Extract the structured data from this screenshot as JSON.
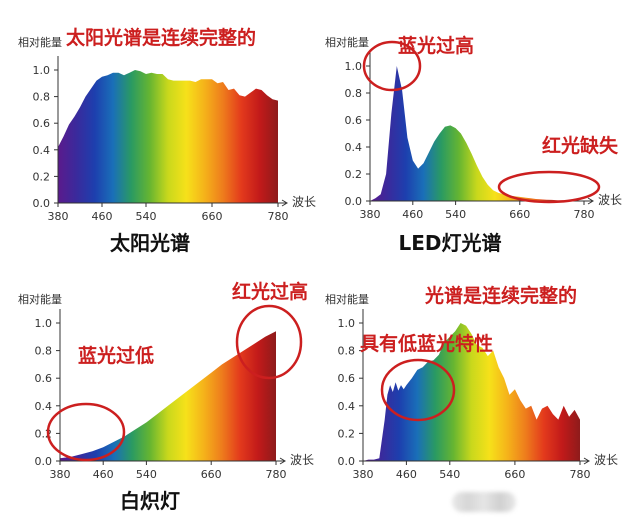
{
  "colors": {
    "annotation": "#cc1f1f",
    "axis": "#333333",
    "tick_text": "#333333",
    "caption": "#111111",
    "spectrum": [
      "#5b1a8c",
      "#3a2a9c",
      "#1d3fae",
      "#1a6fb8",
      "#2a9a62",
      "#66b531",
      "#c9d81c",
      "#f6e11a",
      "#f5b21a",
      "#ee7c1c",
      "#e33a1c",
      "#c21a1a",
      "#8e1b1b"
    ]
  },
  "chart_data": [
    {
      "id": "sunlight",
      "type": "area",
      "caption": "太阳光谱",
      "title": "太阳光谱是连续完整的",
      "ylabel": "相对能量",
      "xlabel": "波长",
      "xlim": [
        380,
        780
      ],
      "ylim": [
        0,
        1.0
      ],
      "xticks": [
        "380",
        "460",
        "540",
        "660",
        "780"
      ],
      "yticks": [
        "0.0",
        "0.2",
        "0.4",
        "0.6",
        "0.8",
        "1.0"
      ],
      "x": [
        380,
        390,
        400,
        410,
        420,
        430,
        440,
        450,
        460,
        470,
        480,
        490,
        500,
        510,
        520,
        530,
        540,
        550,
        560,
        570,
        580,
        590,
        600,
        610,
        620,
        630,
        640,
        650,
        660,
        670,
        680,
        690,
        700,
        710,
        720,
        730,
        740,
        750,
        760,
        770,
        780
      ],
      "y": [
        0.42,
        0.5,
        0.59,
        0.65,
        0.72,
        0.8,
        0.86,
        0.92,
        0.95,
        0.96,
        0.98,
        0.98,
        0.96,
        0.98,
        1.0,
        0.99,
        0.97,
        0.98,
        0.97,
        0.97,
        0.93,
        0.92,
        0.92,
        0.92,
        0.92,
        0.91,
        0.93,
        0.93,
        0.93,
        0.9,
        0.91,
        0.85,
        0.86,
        0.81,
        0.8,
        0.83,
        0.86,
        0.85,
        0.81,
        0.78,
        0.77
      ],
      "annotations": []
    },
    {
      "id": "led",
      "type": "area",
      "caption": "LED灯光谱",
      "title": "",
      "ylabel": "相对能量",
      "xlabel": "波长",
      "xlim": [
        380,
        780
      ],
      "ylim": [
        0,
        1.0
      ],
      "xticks": [
        "380",
        "460",
        "540",
        "660",
        "780"
      ],
      "yticks": [
        "0.0",
        "0.2",
        "0.4",
        "0.6",
        "0.8",
        "1.0"
      ],
      "x": [
        380,
        390,
        400,
        410,
        420,
        430,
        440,
        450,
        460,
        470,
        480,
        490,
        500,
        510,
        520,
        530,
        540,
        550,
        560,
        570,
        580,
        590,
        600,
        610,
        620,
        630,
        640,
        650,
        660,
        670,
        680,
        690,
        700,
        710,
        720,
        730,
        740,
        750,
        760,
        770,
        780
      ],
      "y": [
        0.0,
        0.02,
        0.05,
        0.2,
        0.65,
        1.0,
        0.82,
        0.47,
        0.3,
        0.24,
        0.28,
        0.36,
        0.44,
        0.5,
        0.55,
        0.56,
        0.54,
        0.5,
        0.43,
        0.35,
        0.26,
        0.18,
        0.12,
        0.08,
        0.06,
        0.05,
        0.04,
        0.035,
        0.03,
        0.025,
        0.02,
        0.015,
        0.012,
        0.01,
        0.008,
        0.006,
        0.005,
        0.004,
        0.003,
        0.002,
        0.0
      ],
      "annotations": [
        {
          "text": "蓝光过高",
          "ellipse_center": [
            424,
            0.95
          ]
        },
        {
          "text": "红光缺失",
          "ellipse_center": [
            700,
            0.08
          ]
        }
      ]
    },
    {
      "id": "incandescent",
      "type": "area",
      "caption": "白炽灯",
      "title": "",
      "ylabel": "相对能量",
      "xlabel": "波长",
      "xlim": [
        380,
        780
      ],
      "ylim": [
        0,
        1.0
      ],
      "xticks": [
        "380",
        "460",
        "540",
        "660",
        "780"
      ],
      "yticks": [
        "0.0",
        "0.2",
        "0.4",
        "0.6",
        "0.8",
        "1.0"
      ],
      "x": [
        380,
        400,
        420,
        440,
        460,
        480,
        500,
        520,
        540,
        560,
        580,
        600,
        620,
        640,
        660,
        680,
        700,
        720,
        740,
        760,
        780
      ],
      "y": [
        0.02,
        0.03,
        0.05,
        0.07,
        0.1,
        0.14,
        0.18,
        0.23,
        0.28,
        0.34,
        0.4,
        0.46,
        0.52,
        0.58,
        0.64,
        0.7,
        0.75,
        0.8,
        0.85,
        0.9,
        0.94
      ],
      "annotations": [
        {
          "text": "蓝光过低",
          "ellipse_center": [
            410,
            0.04
          ]
        },
        {
          "text": "红光过高",
          "ellipse_center": [
            760,
            0.86
          ]
        }
      ]
    },
    {
      "id": "full-spectrum",
      "type": "area",
      "caption": "",
      "title": "光谱是连续完整的",
      "ylabel": "相对能量",
      "xlabel": "波长",
      "xlim": [
        380,
        780
      ],
      "ylim": [
        0,
        1.0
      ],
      "xticks": [
        "380",
        "460",
        "540",
        "660",
        "780"
      ],
      "yticks": [
        "0.0",
        "0.2",
        "0.4",
        "0.6",
        "0.8",
        "1.0"
      ],
      "x": [
        380,
        390,
        400,
        410,
        420,
        425,
        430,
        435,
        440,
        445,
        450,
        455,
        460,
        470,
        480,
        490,
        500,
        510,
        520,
        530,
        540,
        550,
        560,
        570,
        580,
        590,
        600,
        610,
        620,
        630,
        640,
        650,
        660,
        670,
        680,
        690,
        700,
        710,
        720,
        730,
        740,
        750,
        760,
        770,
        780
      ],
      "y": [
        0.0,
        0.01,
        0.01,
        0.02,
        0.3,
        0.48,
        0.55,
        0.5,
        0.57,
        0.51,
        0.55,
        0.52,
        0.55,
        0.6,
        0.66,
        0.68,
        0.72,
        0.73,
        0.77,
        0.86,
        0.9,
        0.94,
        1.0,
        0.98,
        0.92,
        0.84,
        0.82,
        0.76,
        0.8,
        0.68,
        0.6,
        0.48,
        0.52,
        0.44,
        0.38,
        0.4,
        0.3,
        0.38,
        0.4,
        0.34,
        0.3,
        0.4,
        0.32,
        0.37,
        0.3
      ],
      "annotations": [
        {
          "text": "具有低蓝光特性",
          "ellipse_center": [
            420,
            0.4
          ]
        }
      ]
    }
  ]
}
